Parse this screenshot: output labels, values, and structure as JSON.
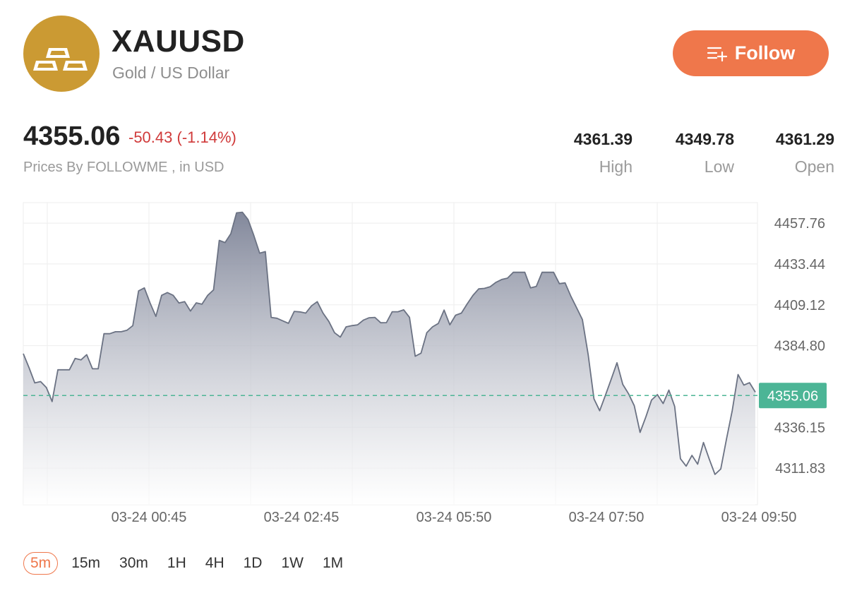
{
  "header": {
    "symbol": "XAUUSD",
    "name": "Gold / US Dollar",
    "logo_icon": "gold-bars-icon",
    "follow_label": "Follow",
    "follow_icon": "add-to-list-icon"
  },
  "quote": {
    "price": "4355.06",
    "change": "-50.43 (-1.14%)",
    "source": "Prices By FOLLOWME , in USD",
    "stats": [
      {
        "value": "4361.39",
        "label": "High"
      },
      {
        "value": "4349.78",
        "label": "Low"
      },
      {
        "value": "4361.29",
        "label": "Open"
      }
    ]
  },
  "colors": {
    "accent": "#ef774b",
    "negative": "#d03a3a",
    "current_price": "#4cb596",
    "line": "#6b7283",
    "logo": "#cb9a33"
  },
  "chart_data": {
    "type": "area",
    "y_ticks": [
      "4457.76",
      "4433.44",
      "4409.12",
      "4384.80",
      "4336.15",
      "4311.83"
    ],
    "y_range": [
      4290,
      4470
    ],
    "x_labels": [
      "03-24 00:45",
      "03-24 02:45",
      "03-24 05:50",
      "03-24 07:50",
      "03-24 09:50"
    ],
    "current_price": 4355.06,
    "current_price_label": "4355.06",
    "grid": true,
    "values": [
      4380.0,
      4371.6,
      4362.6,
      4363.4,
      4359.8,
      4351.5,
      4370.4,
      4370.4,
      4370.4,
      4377.2,
      4376.3,
      4379.4,
      4371.0,
      4371.0,
      4391.9,
      4391.9,
      4393.1,
      4393.1,
      4394.0,
      4396.7,
      4417.4,
      4419.2,
      4410.2,
      4402.2,
      4414.8,
      4416.4,
      4414.8,
      4410.2,
      4411.0,
      4405.4,
      4410.3,
      4409.5,
      4414.8,
      4418.0,
      4447.5,
      4446.2,
      4451.5,
      4463.9,
      4464.3,
      4459.9,
      4450.4,
      4439.9,
      4440.8,
      4401.6,
      4401.1,
      4399.6,
      4398.1,
      4405.2,
      4404.9,
      4404.2,
      4408.5,
      4411.0,
      4404.2,
      4399.2,
      4392.5,
      4389.9,
      4396.0,
      4396.7,
      4397.2,
      4400.0,
      4401.4,
      4401.6,
      4398.4,
      4398.5,
      4405.0,
      4405.0,
      4406.1,
      4401.6,
      4378.5,
      4380.3,
      4392.5,
      4396.0,
      4398.0,
      4406.0,
      4397.2,
      4402.9,
      4404.2,
      4409.6,
      4414.7,
      4418.6,
      4418.9,
      4419.9,
      4422.5,
      4424.2,
      4425.0,
      4428.5,
      4428.5,
      4428.5,
      4419.2,
      4420.1,
      4428.5,
      4428.5,
      4428.5,
      4421.7,
      4422.2,
      4414.2,
      4407.3,
      4400.3,
      4379.4,
      4353.1,
      4346.0,
      4355.3,
      4364.9,
      4374.6,
      4361.7,
      4356.1,
      4349.0,
      4333.1,
      4342.3,
      4352.4,
      4355.6,
      4350.3,
      4358.3,
      4348.6,
      4317.4,
      4313.0,
      4319.4,
      4314.2,
      4327.1,
      4317.2,
      4308.1,
      4311.3,
      4329.3,
      4346.2,
      4367.6,
      4361.3,
      4362.7,
      4357.1
    ]
  },
  "timeframes": [
    "5m",
    "15m",
    "30m",
    "1H",
    "4H",
    "1D",
    "1W",
    "1M"
  ],
  "active_timeframe": "5m"
}
